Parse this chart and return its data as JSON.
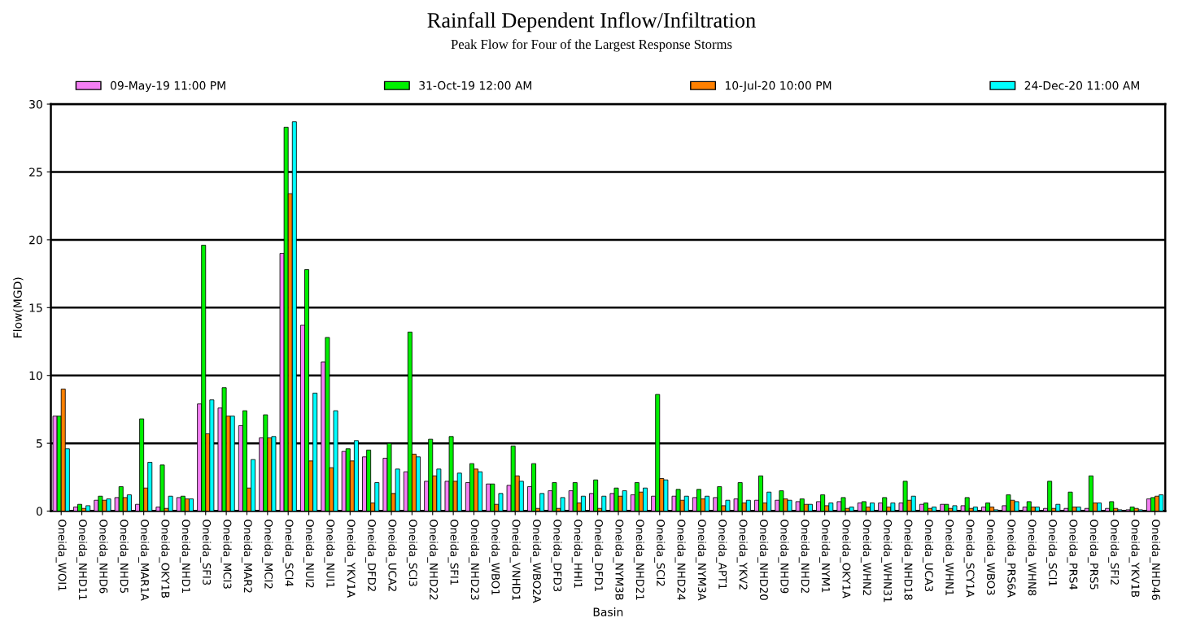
{
  "chart_data": {
    "type": "bar",
    "title": "Rainfall Dependent Inflow/Infiltration",
    "subtitle": "Peak Flow for Four of the Largest Response Storms",
    "xlabel": "Basin",
    "ylabel": "Flow(MGD)",
    "categories": [
      "Oneida_WOI1",
      "Oneida_NHD11",
      "Oneida_NHD6",
      "Oneida_NHD5",
      "Oneida_MAR1A",
      "Oneida_OKY1B",
      "Oneida_NHD1",
      "Oneida_SFI3",
      "Oneida_MCI3",
      "Oneida_MAR2",
      "Oneida_MCI2",
      "Oneida_SCI4",
      "Oneida_NUI2",
      "Oneida_NUI1",
      "Oneida_YKV1A",
      "Oneida_DFD2",
      "Oneida_UCA2",
      "Oneida_SCI3",
      "Oneida_NHD22",
      "Oneida_SFI1",
      "Oneida_NHD23",
      "Oneida_WBO1",
      "Oneida_VNHD1",
      "Oneida_WBO2A",
      "Oneida_DFD3",
      "Oneida_HHI1",
      "Oneida_DFD1",
      "Oneida_NYM3B",
      "Oneida_NHD21",
      "Oneida_SCI2",
      "Oneida_NHD24",
      "Oneida_NYM3A",
      "Oneida_APT1",
      "Oneida_YKV2",
      "Oneida_NHD20",
      "Oneida_NHD9",
      "Oneida_NHD2",
      "Oneida_NYM1",
      "Oneida_OKY1A",
      "Oneida_WHN2",
      "Oneida_WHN31",
      "Oneida_NHD18",
      "Oneida_UCA3",
      "Oneida_WHN1",
      "Oneida_SCY1A",
      "Oneida_WBO3",
      "Oneida_PRS6A",
      "Oneida_WHN8",
      "Oneida_SCI1",
      "Oneida_PRS4",
      "Oneida_PRS5",
      "Oneida_SFI2",
      "Oneida_YKV1B",
      "Oneida_NHD46"
    ],
    "series": [
      {
        "name": "09-May-19 11:00 PM",
        "color": "#f47ff4",
        "values": [
          7.0,
          0.3,
          0.8,
          1.0,
          0.5,
          0.3,
          1.0,
          7.9,
          7.6,
          6.3,
          5.4,
          19.0,
          13.7,
          11.0,
          4.4,
          4.0,
          3.9,
          2.9,
          2.2,
          2.2,
          2.1,
          2.0,
          1.9,
          1.8,
          1.5,
          1.5,
          1.3,
          1.3,
          1.2,
          1.1,
          1.1,
          1.0,
          1.0,
          0.9,
          0.8,
          0.8,
          0.7,
          0.7,
          0.7,
          0.6,
          0.6,
          0.6,
          0.5,
          0.5,
          0.4,
          0.3,
          0.4,
          0.3,
          0.2,
          0.2,
          0.2,
          0.2,
          0.1,
          0.9
        ]
      },
      {
        "name": "31-Oct-19 12:00 AM",
        "color": "#00f000",
        "values": [
          7.0,
          0.5,
          1.1,
          1.8,
          6.8,
          3.4,
          1.1,
          19.6,
          9.1,
          7.4,
          7.1,
          28.3,
          17.8,
          12.8,
          4.6,
          4.5,
          5.0,
          13.2,
          5.3,
          5.5,
          3.5,
          2.0,
          4.8,
          3.5,
          2.1,
          2.1,
          2.3,
          1.7,
          2.1,
          8.6,
          1.6,
          1.6,
          1.8,
          2.1,
          2.6,
          1.5,
          0.9,
          1.2,
          1.0,
          0.7,
          1.0,
          2.2,
          0.6,
          0.5,
          1.0,
          0.6,
          1.2,
          0.7,
          2.2,
          1.4,
          2.6,
          0.7,
          0.3,
          1.0
        ]
      },
      {
        "name": "10-Jul-20 10:00 PM",
        "color": "#ff8000",
        "values": [
          9.0,
          0.2,
          0.8,
          1.0,
          1.7,
          0.2,
          0.9,
          5.7,
          7.0,
          1.7,
          5.4,
          23.4,
          3.7,
          3.2,
          3.7,
          0.6,
          1.3,
          4.2,
          2.6,
          2.2,
          3.1,
          0.5,
          2.6,
          0.2,
          0.2,
          0.6,
          0.2,
          1.1,
          1.4,
          2.4,
          0.8,
          0.9,
          0.4,
          0.6,
          0.6,
          0.9,
          0.5,
          0.4,
          0.2,
          0.3,
          0.3,
          0.8,
          0.2,
          0.2,
          0.2,
          0.3,
          0.8,
          0.3,
          0.2,
          0.3,
          0.6,
          0.2,
          0.2,
          1.1
        ]
      },
      {
        "name": "24-Dec-20 11:00 AM",
        "color": "#00ffff",
        "values": [
          4.6,
          0.4,
          0.9,
          1.2,
          3.6,
          1.1,
          0.9,
          8.2,
          7.0,
          3.8,
          5.5,
          28.7,
          8.7,
          7.4,
          5.2,
          2.1,
          3.1,
          4.0,
          3.1,
          2.8,
          2.9,
          1.3,
          2.2,
          1.3,
          1.0,
          1.1,
          1.1,
          1.5,
          1.7,
          2.3,
          1.1,
          1.1,
          0.8,
          0.8,
          1.4,
          0.8,
          0.5,
          0.6,
          0.3,
          0.6,
          0.6,
          1.1,
          0.3,
          0.4,
          0.3,
          0.1,
          0.7,
          0.3,
          0.5,
          0.3,
          0.6,
          0.1,
          0.1,
          1.2
        ]
      }
    ],
    "ylim": [
      0,
      30
    ],
    "yticks": [
      0,
      5,
      10,
      15,
      20,
      25,
      30
    ],
    "grid": "y",
    "legend": "top"
  }
}
